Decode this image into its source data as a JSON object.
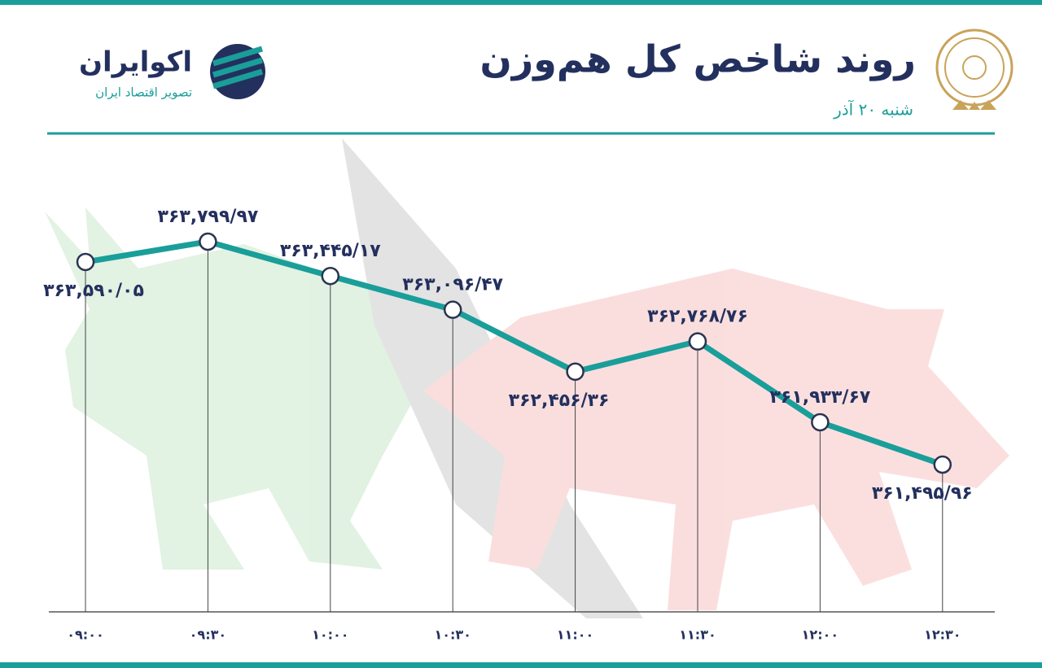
{
  "chart_data": {
    "type": "line",
    "title": "روند شاخص کل هم‌وزن",
    "subtitle": "شنبه ۲۰ آذر",
    "brand": "اکوایران",
    "brand_tagline": "تصویر اقتصاد ایران",
    "categories": [
      "۰۹:۰۰",
      "۰۹:۳۰",
      "۱۰:۰۰",
      "۱۰:۳۰",
      "۱۱:۰۰",
      "۱۱:۳۰",
      "۱۲:۰۰",
      "۱۲:۳۰"
    ],
    "values": [
      363590.05,
      363799.97,
      363445.17,
      363096.47,
      362456.36,
      362768.76,
      361933.67,
      361495.96
    ],
    "value_labels": [
      "۳۶۳,۵۹۰/۰۵",
      "۳۶۳,۷۹۹/۹۷",
      "۳۶۳,۴۴۵/۱۷",
      "۳۶۳,۰۹۶/۴۷",
      "۳۶۲,۴۵۶/۳۶",
      "۳۶۲,۷۶۸/۷۶",
      "۳۶۱,۹۳۳/۶۷",
      "۳۶۱,۴۹۵/۹۶"
    ],
    "color": "#1a9e9a"
  }
}
